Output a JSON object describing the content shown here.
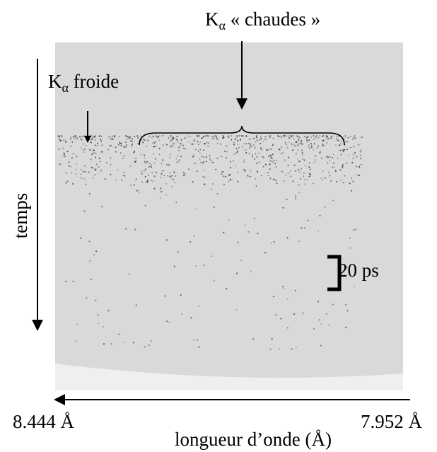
{
  "hot_label": {
    "main": "K",
    "sub": "α",
    "rest": " « chaudes »"
  },
  "cold_label": {
    "main": "K",
    "sub": "α",
    "rest": " froide"
  },
  "time_axis": {
    "label": "temps"
  },
  "scale_label": "20 ps",
  "wavelength_axis": {
    "left": "8.444 Å",
    "right": "7.952 Å",
    "label": "longueur d’onde (Å)"
  }
}
